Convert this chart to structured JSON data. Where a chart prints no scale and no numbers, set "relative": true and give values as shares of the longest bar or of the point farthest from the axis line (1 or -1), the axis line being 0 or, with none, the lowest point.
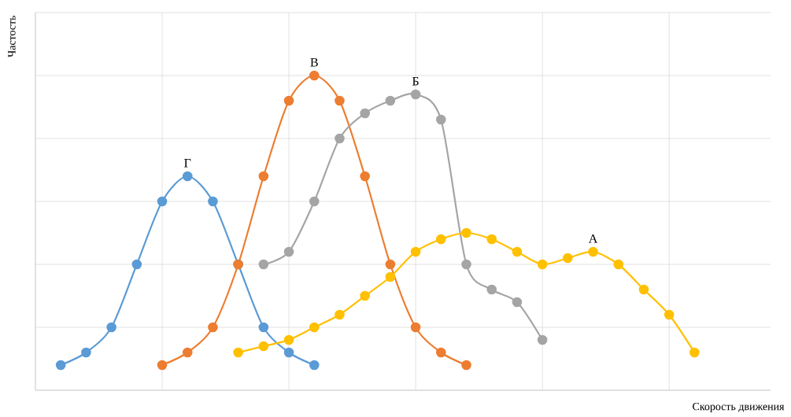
{
  "chart_data": {
    "type": "line",
    "relative": true,
    "xlabel": "Скорость движения",
    "ylabel": "Частость",
    "grid": true,
    "marker": "circle",
    "line_style": "solid",
    "categories": [
      null,
      null,
      null,
      null,
      null,
      null,
      null,
      null,
      null,
      null,
      null,
      null,
      null,
      null,
      null,
      null,
      null,
      null,
      null,
      null,
      null,
      null,
      null,
      null,
      null,
      null,
      null,
      null,
      null,
      null
    ],
    "series": [
      {
        "name": "Г",
        "color": "#5b9bd5",
        "values": [
          null,
          0.08,
          0.12,
          0.2,
          0.4,
          0.6,
          0.68,
          0.6,
          0.4,
          0.2,
          0.12,
          0.08,
          null,
          null,
          null,
          null,
          null,
          null,
          null,
          null,
          null,
          null,
          null,
          null,
          null,
          null,
          null,
          null,
          null,
          null
        ]
      },
      {
        "name": "В",
        "color": "#ed7d31",
        "values": [
          null,
          null,
          null,
          null,
          null,
          0.08,
          0.12,
          0.2,
          0.4,
          0.68,
          0.92,
          1.0,
          0.92,
          0.68,
          0.4,
          0.2,
          0.12,
          0.08,
          null,
          null,
          null,
          null,
          null,
          null,
          null,
          null,
          null,
          null,
          null,
          null
        ]
      },
      {
        "name": "Б",
        "color": "#a5a5a5",
        "values": [
          null,
          null,
          null,
          null,
          null,
          null,
          null,
          null,
          null,
          0.4,
          0.44,
          0.6,
          0.8,
          0.88,
          0.92,
          0.94,
          0.86,
          0.4,
          0.32,
          0.28,
          0.16,
          null,
          null,
          null,
          null,
          null,
          null,
          null,
          null,
          null
        ]
      },
      {
        "name": "А",
        "color": "#ffc000",
        "values": [
          null,
          null,
          null,
          null,
          null,
          null,
          null,
          null,
          0.12,
          0.14,
          0.16,
          0.2,
          0.24,
          0.3,
          0.36,
          0.44,
          0.48,
          0.5,
          0.48,
          0.44,
          0.4,
          0.42,
          0.44,
          0.4,
          0.32,
          0.24,
          0.12,
          null,
          null,
          null
        ]
      }
    ]
  }
}
